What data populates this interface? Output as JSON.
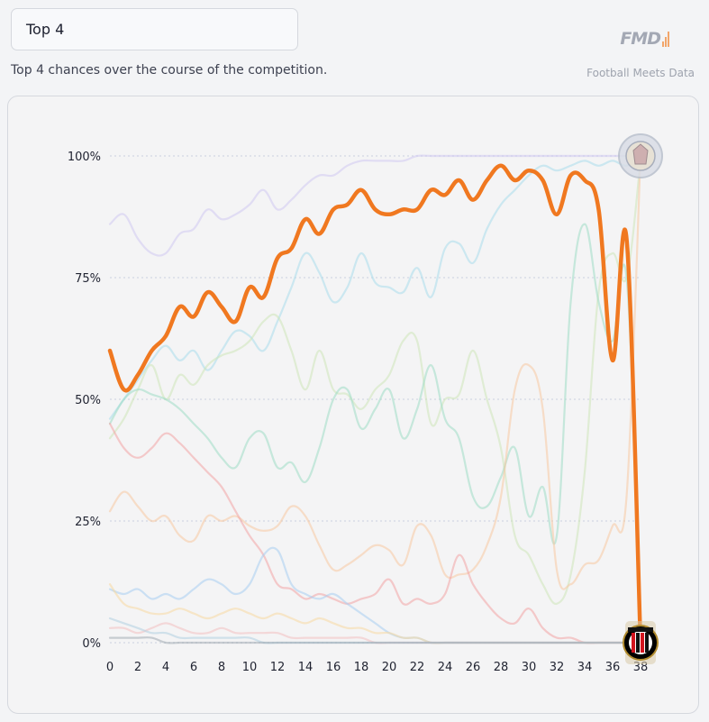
{
  "dropdown": {
    "selected": "Top 4"
  },
  "subtitle": "Top 4 chances over the course of the competition.",
  "brand": {
    "logo_text": "FMD",
    "tagline": "Football Meets Data"
  },
  "colors": {
    "highlight": "#f07820",
    "grid": "#d8dbe6"
  },
  "icons": {
    "top_badge": "club-crest-icon",
    "bottom_badge": "ac-milan-crest-icon"
  },
  "chart_data": {
    "type": "line",
    "title": "",
    "xlabel": "",
    "ylabel": "",
    "x_ticks": [
      0,
      2,
      4,
      6,
      8,
      10,
      12,
      14,
      16,
      18,
      20,
      22,
      24,
      26,
      28,
      30,
      32,
      34,
      36,
      38
    ],
    "y_ticks": [
      0,
      25,
      50,
      75,
      100
    ],
    "y_tick_labels": [
      "0%",
      "25%",
      "50%",
      "75%",
      "100%"
    ],
    "xlim": [
      0,
      38
    ],
    "ylim": [
      0,
      100
    ],
    "grid": "horizontal-dotted",
    "legend": "none",
    "highlight": {
      "values": [
        60,
        52,
        55,
        60,
        63,
        69,
        67,
        72,
        69,
        66,
        73,
        71,
        79,
        81,
        87,
        84,
        89,
        90,
        93,
        89,
        88,
        89,
        89,
        93,
        92,
        95,
        91,
        95,
        98,
        95,
        97,
        95,
        88,
        96,
        95,
        89,
        58,
        83,
        0
      ],
      "color": "#f07820"
    },
    "background_series": [
      {
        "color": "#cfc8f0",
        "values": [
          86,
          88,
          83,
          80,
          80,
          84,
          85,
          89,
          87,
          88,
          90,
          93,
          89,
          91,
          94,
          96,
          96,
          98,
          99,
          99,
          99,
          99,
          100,
          100,
          100,
          100,
          100,
          100,
          100,
          100,
          100,
          100,
          100,
          100,
          100,
          100,
          100,
          100,
          100
        ]
      },
      {
        "color": "#a9dceb",
        "values": [
          46,
          50,
          54,
          58,
          61,
          58,
          60,
          56,
          60,
          64,
          63,
          60,
          66,
          73,
          80,
          76,
          70,
          73,
          80,
          74,
          73,
          72,
          77,
          71,
          81,
          82,
          78,
          85,
          90,
          93,
          96,
          98,
          97,
          98,
          99,
          98,
          99,
          98,
          100
        ]
      },
      {
        "color": "#cde6b8",
        "values": [
          42,
          46,
          52,
          57,
          50,
          55,
          53,
          57,
          59,
          60,
          62,
          66,
          67,
          60,
          52,
          60,
          52,
          51,
          48,
          52,
          55,
          62,
          62,
          45,
          50,
          51,
          60,
          50,
          40,
          22,
          18,
          12,
          8,
          14,
          35,
          72,
          80,
          75,
          99
        ]
      },
      {
        "color": "#9fdcc4",
        "values": [
          45,
          50,
          52,
          51,
          50,
          48,
          45,
          42,
          38,
          36,
          42,
          43,
          36,
          37,
          33,
          40,
          50,
          52,
          44,
          48,
          52,
          42,
          48,
          57,
          46,
          42,
          30,
          28,
          34,
          40,
          26,
          32,
          22,
          70,
          86,
          70,
          62,
          75,
          5
        ]
      },
      {
        "color": "#f8c9a0",
        "values": [
          27,
          31,
          28,
          25,
          26,
          22,
          21,
          26,
          25,
          26,
          24,
          23,
          24,
          28,
          26,
          20,
          15,
          16,
          18,
          20,
          19,
          16,
          24,
          22,
          14,
          14,
          15,
          20,
          30,
          52,
          57,
          48,
          15,
          12,
          16,
          17,
          24,
          30,
          100
        ]
      },
      {
        "color": "#f2a4a4",
        "values": [
          45,
          40,
          38,
          40,
          43,
          41,
          38,
          35,
          32,
          27,
          22,
          18,
          12,
          11,
          9,
          10,
          9,
          8,
          9,
          10,
          13,
          8,
          9,
          8,
          10,
          18,
          12,
          8,
          5,
          4,
          7,
          3,
          1,
          1,
          0,
          0,
          0,
          0,
          0
        ]
      },
      {
        "color": "#a8cdf0",
        "values": [
          11,
          10,
          11,
          9,
          10,
          9,
          11,
          13,
          12,
          10,
          12,
          18,
          19,
          12,
          10,
          9,
          10,
          8,
          6,
          4,
          2,
          1,
          1,
          0,
          0,
          0,
          0,
          0,
          0,
          0,
          0,
          0,
          0,
          0,
          0,
          0,
          0,
          0,
          0
        ]
      },
      {
        "color": "#f8d8a0",
        "values": [
          12,
          8,
          7,
          6,
          6,
          7,
          6,
          5,
          6,
          7,
          6,
          5,
          6,
          5,
          4,
          5,
          4,
          3,
          3,
          2,
          2,
          1,
          1,
          0,
          0,
          0,
          0,
          0,
          0,
          0,
          0,
          0,
          0,
          0,
          0,
          0,
          0,
          0,
          0
        ]
      },
      {
        "color": "#f2c0c0",
        "values": [
          3,
          3,
          2,
          3,
          4,
          3,
          2,
          2,
          3,
          2,
          2,
          2,
          2,
          1,
          1,
          1,
          1,
          1,
          1,
          0,
          0,
          0,
          0,
          0,
          0,
          0,
          0,
          0,
          0,
          0,
          0,
          0,
          0,
          0,
          0,
          0,
          0,
          0,
          0
        ]
      },
      {
        "color": "#b0cfe0",
        "values": [
          5,
          4,
          3,
          2,
          2,
          1,
          1,
          1,
          1,
          1,
          1,
          0,
          0,
          0,
          0,
          0,
          0,
          0,
          0,
          0,
          0,
          0,
          0,
          0,
          0,
          0,
          0,
          0,
          0,
          0,
          0,
          0,
          0,
          0,
          0,
          0,
          0,
          0,
          0
        ]
      },
      {
        "color": "#a0aab0",
        "values": [
          1,
          1,
          1,
          1,
          0,
          0,
          0,
          0,
          0,
          0,
          0,
          0,
          0,
          0,
          0,
          0,
          0,
          0,
          0,
          0,
          0,
          0,
          0,
          0,
          0,
          0,
          0,
          0,
          0,
          0,
          0,
          0,
          0,
          0,
          0,
          0,
          0,
          0,
          0
        ]
      }
    ]
  }
}
